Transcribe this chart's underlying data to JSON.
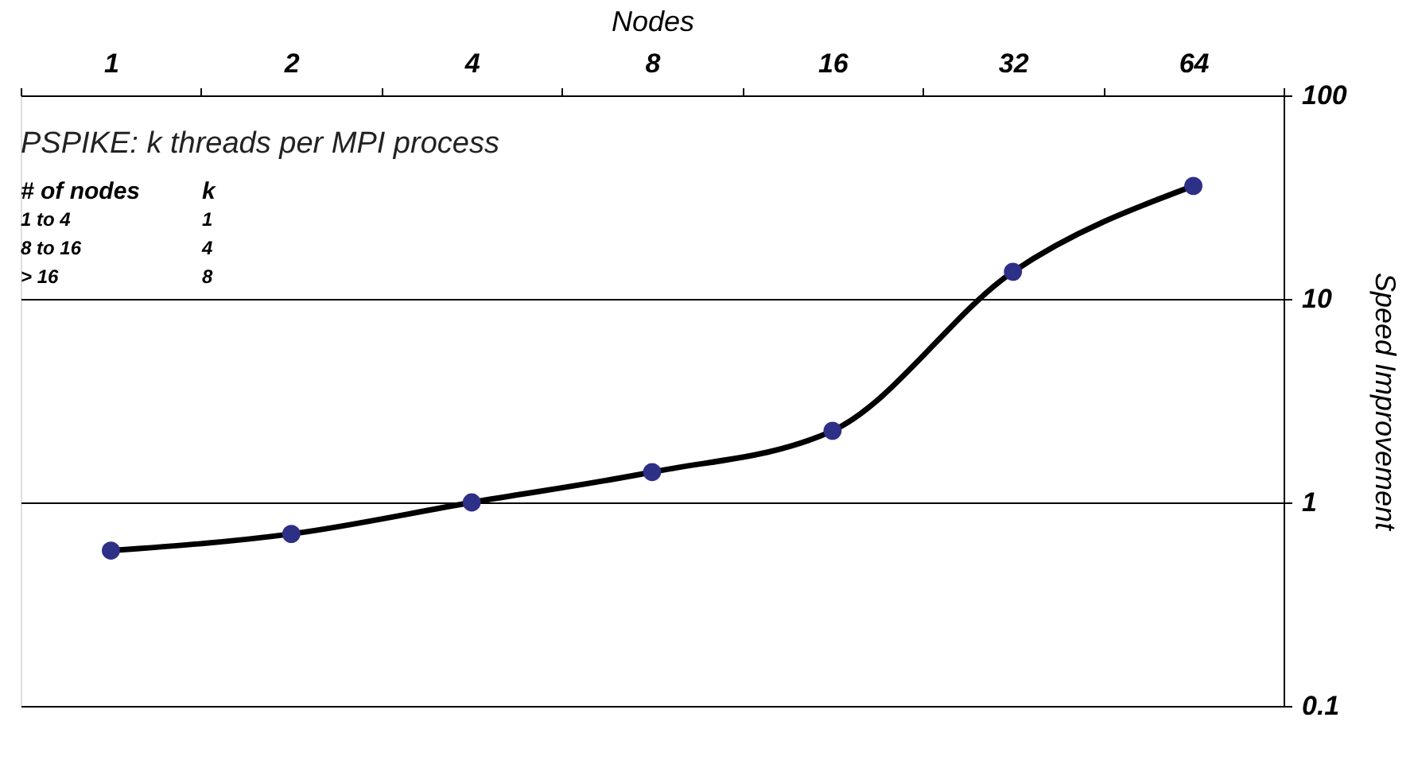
{
  "chart_data": {
    "type": "line",
    "xlabel": "Nodes",
    "ylabel": "Speed Improvement",
    "categories": [
      "1",
      "2",
      "4",
      "8",
      "16",
      "32",
      "64"
    ],
    "series": [
      {
        "color": "#2e2f86",
        "values": [
          0.58,
          0.7,
          1.0,
          1.41,
          2.25,
          13.6,
          35.9
        ]
      }
    ],
    "log": "y",
    "ylim": [
      0.1,
      100
    ],
    "yticks": [
      0.1,
      1,
      10,
      100
    ],
    "grid": "y",
    "marker": "circle",
    "line_style": "solid",
    "annotations": [
      "PSPIKE: k threads per MPI process",
      "# of nodes",
      "k",
      "1 to 4",
      "1",
      "8 to 16",
      "4",
      "> 16",
      "8"
    ]
  }
}
